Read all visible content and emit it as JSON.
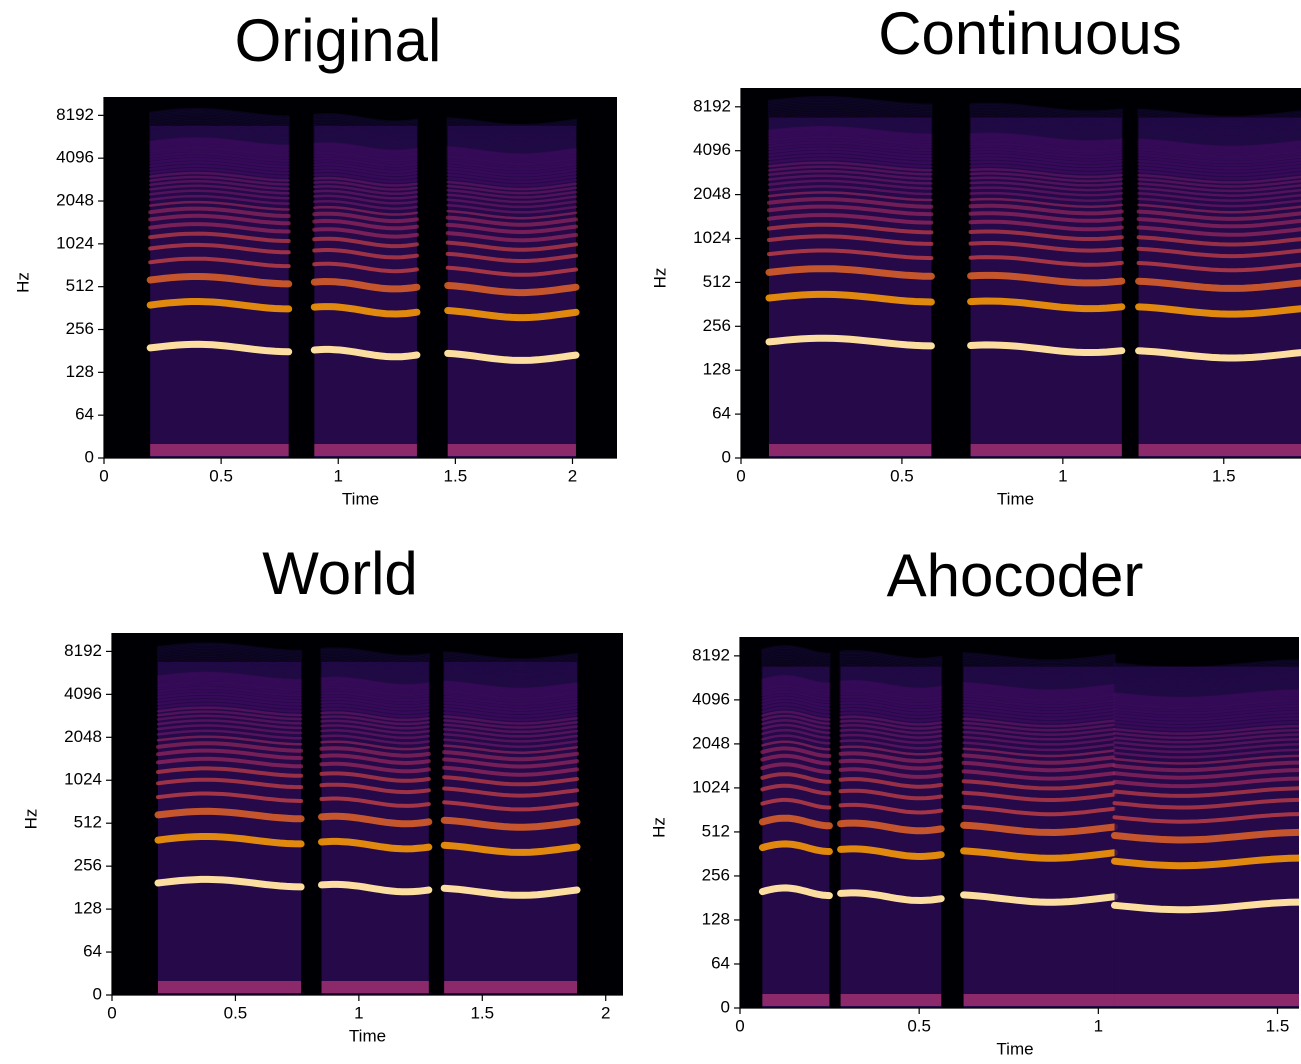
{
  "chart_data": [
    {
      "type": "spectrogram",
      "title": "Original",
      "xlabel": "Time",
      "ylabel": "Hz",
      "xlim": [
        0,
        2.19
      ],
      "xticks": [
        0,
        0.5,
        1,
        1.5,
        2
      ],
      "ylim": [
        0,
        11025
      ],
      "yticks": [
        0,
        64,
        128,
        256,
        512,
        1024,
        2048,
        4096,
        8192
      ],
      "yscale": "symlog"
    },
    {
      "type": "spectrogram",
      "title": "Continuous",
      "xlabel": "Time",
      "ylabel": "Hz",
      "xlim": [
        0,
        1.74
      ],
      "xticks": [
        0,
        0.5,
        1,
        1.5
      ],
      "ylim": [
        0,
        11025
      ],
      "yticks": [
        0,
        64,
        128,
        256,
        512,
        1024,
        2048,
        4096,
        8192
      ],
      "yscale": "symlog"
    },
    {
      "type": "spectrogram",
      "title": "World",
      "xlabel": "Time",
      "ylabel": "Hz",
      "xlim": [
        0,
        2.07
      ],
      "xticks": [
        0,
        0.5,
        1,
        1.5,
        2
      ],
      "ylim": [
        0,
        11025
      ],
      "yticks": [
        0,
        64,
        128,
        256,
        512,
        1024,
        2048,
        4096,
        8192
      ],
      "yscale": "symlog"
    },
    {
      "type": "spectrogram",
      "title": "Ahocoder",
      "xlabel": "Time",
      "ylabel": "Hz",
      "xlim": [
        0,
        1.56
      ],
      "xticks": [
        0,
        0.5,
        1,
        1.5
      ],
      "ylim": [
        0,
        11025
      ],
      "yticks": [
        0,
        64,
        128,
        256,
        512,
        1024,
        2048,
        4096,
        8192
      ],
      "yscale": "symlog"
    }
  ]
}
